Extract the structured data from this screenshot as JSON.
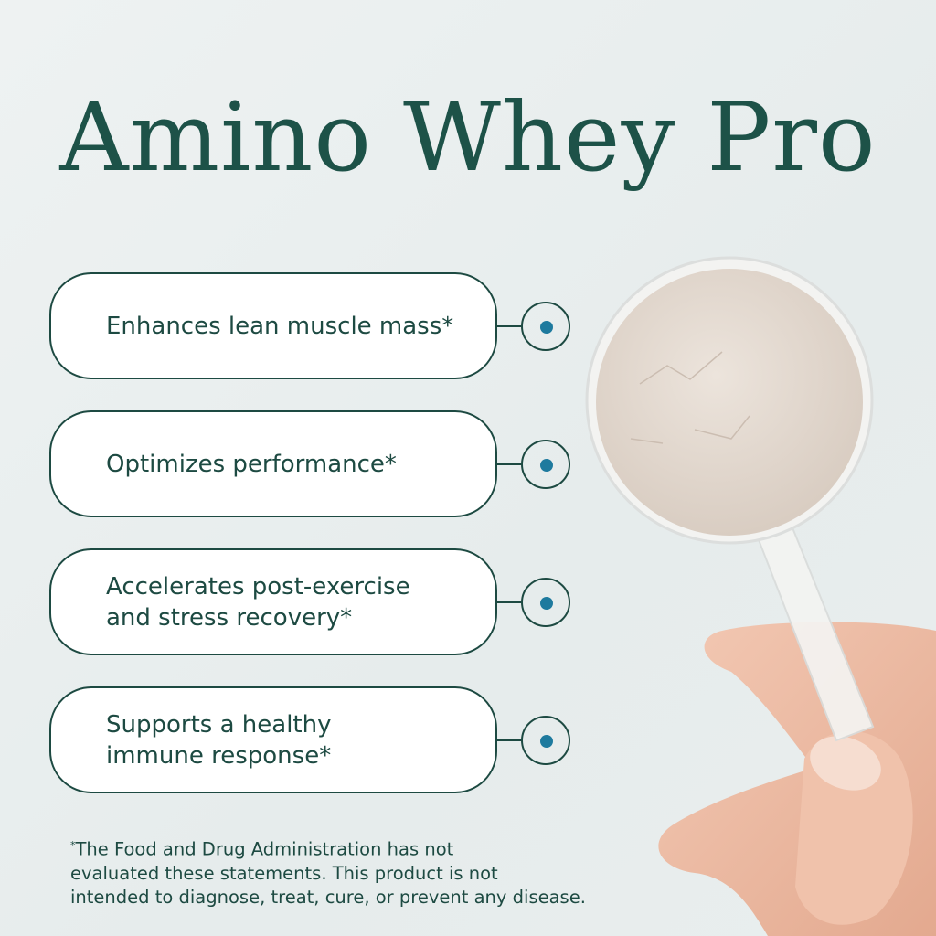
{
  "title": "Amino Whey Pro",
  "benefits": [
    {
      "text": "Enhances lean muscle mass*"
    },
    {
      "text": "Optimizes performance*"
    },
    {
      "text": "Accelerates post-exercise\nand stress recovery*"
    },
    {
      "text": "Supports a healthy\nimmune response*"
    }
  ],
  "disclaimer": {
    "marker": "*",
    "text": "The Food and Drug Administration has not\nevaluated these statements. This product is not\nintended to diagnose, treat, cure, or prevent any disease."
  },
  "colors": {
    "brand_green": "#1d5248",
    "accent_dot": "#1e7a9e",
    "background": "#e9eeee"
  },
  "image": {
    "subject": "hand-holding-scoop-of-protein-powder"
  }
}
